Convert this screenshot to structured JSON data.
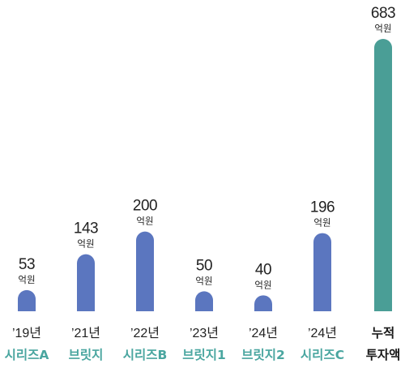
{
  "chart_data": {
    "type": "bar",
    "unit": "억원",
    "categories": [
      {
        "year": "’19년",
        "round": "시리즈A"
      },
      {
        "year": "’21년",
        "round": "브릿지"
      },
      {
        "year": "’22년",
        "round": "시리즈B"
      },
      {
        "year": "’23년",
        "round": "브릿지1"
      },
      {
        "year": "’24년",
        "round": "브릿지2"
      },
      {
        "year": "’24년",
        "round": "시리즈C"
      },
      {
        "year": "누적",
        "round": "투자액"
      }
    ],
    "values": [
      53,
      143,
      200,
      50,
      40,
      196,
      683
    ],
    "highlight_index": 6,
    "colors": {
      "bar": "#5b76bf",
      "total_bar": "#4a9e96",
      "round_label": "#4aa6a0",
      "total_label": "#1a1a1a",
      "text": "#222222"
    },
    "ylim": [
      0,
      683
    ],
    "grid": false,
    "legend": "none"
  }
}
